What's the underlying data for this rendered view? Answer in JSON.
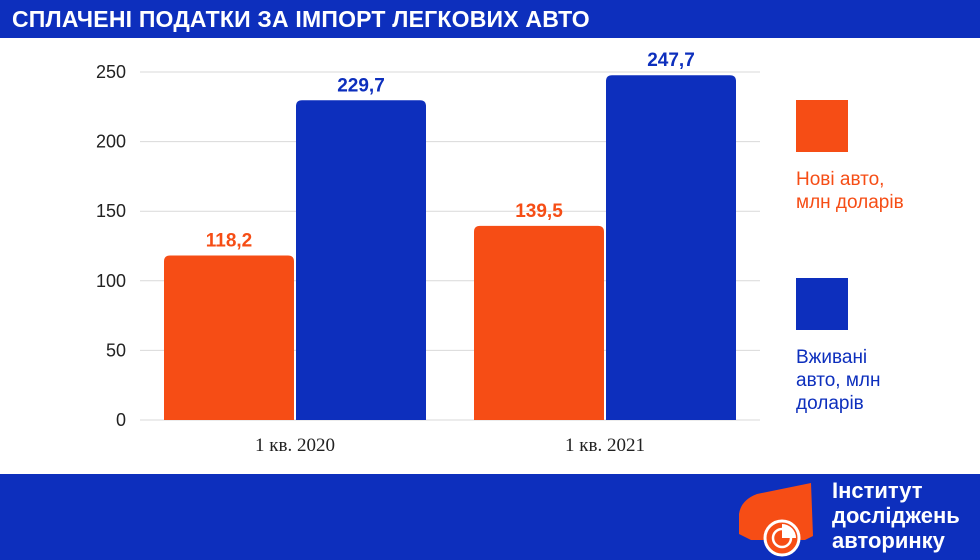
{
  "header": {
    "title": "СПЛАЧЕНІ ПОДАТКИ ЗА ІМПОРТ ЛЕГКОВИХ АВТО"
  },
  "colors": {
    "brand_blue": "#0d2fbd",
    "new_cars": "#f64d15",
    "used_cars": "#0d2fbd",
    "grid": "#d9d9d9",
    "axis_text": "#222222"
  },
  "chart_data": {
    "type": "bar",
    "title": "СПЛАЧЕНІ ПОДАТКИ ЗА ІМПОРТ ЛЕГКОВИХ АВТО",
    "categories": [
      "1 кв. 2020",
      "1 кв. 2021"
    ],
    "series": [
      {
        "name": "Нові авто, млн доларів",
        "values": [
          118.2,
          139.5
        ],
        "labels": [
          "118,2",
          "139,5"
        ],
        "color": "#f64d15"
      },
      {
        "name": "Вживані авто, млн доларів",
        "values": [
          229.7,
          247.7
        ],
        "labels": [
          "229,7",
          "247,7"
        ],
        "color": "#0d2fbd"
      }
    ],
    "ylim": [
      0,
      250
    ],
    "yticks": [
      0,
      50,
      100,
      150,
      200,
      250
    ],
    "ytick_labels": [
      "0",
      "50",
      "100",
      "150",
      "200",
      "250"
    ],
    "grid": true,
    "legend_position": "right"
  },
  "legend": {
    "items": [
      {
        "label_line1": "Нові авто,",
        "label_line2": "млн доларів",
        "label_line3": ""
      },
      {
        "label_line1": "Вживані",
        "label_line2": "авто, млн",
        "label_line3": "доларів"
      }
    ]
  },
  "logo": {
    "line1": "Інститут",
    "line2": "досліджень",
    "line3": "авторинку",
    "icon": "car-pie-logo-icon"
  }
}
